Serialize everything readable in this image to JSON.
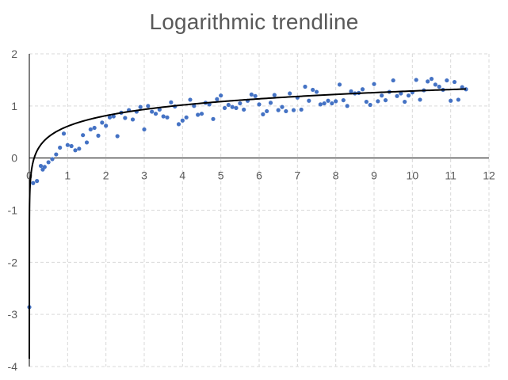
{
  "chart_data": {
    "type": "scatter",
    "title": "Logarithmic trendline",
    "xlabel": "",
    "ylabel": "",
    "xlim": [
      0,
      12
    ],
    "ylim": [
      -4,
      2
    ],
    "x_ticks": [
      "0",
      "1",
      "2",
      "3",
      "4",
      "5",
      "6",
      "7",
      "8",
      "9",
      "10",
      "11",
      "12"
    ],
    "y_ticks": [
      "2",
      "1",
      "0",
      "-1",
      "-2",
      "-3",
      "-4"
    ],
    "grid": "dashed",
    "legend": "none",
    "marker_color": "#4472C4",
    "trendline": {
      "type": "logarithmic",
      "a": 0.294,
      "b": 0.61,
      "color": "#000000"
    },
    "series": [
      {
        "points": [
          [
            0.0,
            -2.86
          ],
          [
            0.1,
            -0.48
          ],
          [
            0.2,
            -0.44
          ],
          [
            0.3,
            -0.15
          ],
          [
            0.35,
            -0.22
          ],
          [
            0.4,
            -0.17
          ],
          [
            0.5,
            -0.08
          ],
          [
            0.6,
            -0.02
          ],
          [
            0.7,
            0.07
          ],
          [
            0.8,
            0.2
          ],
          [
            0.9,
            0.47
          ],
          [
            1.0,
            0.25
          ],
          [
            1.1,
            0.23
          ],
          [
            1.2,
            0.15
          ],
          [
            1.3,
            0.18
          ],
          [
            1.4,
            0.44
          ],
          [
            1.5,
            0.3
          ],
          [
            1.6,
            0.55
          ],
          [
            1.7,
            0.58
          ],
          [
            1.8,
            0.43
          ],
          [
            1.9,
            0.68
          ],
          [
            2.0,
            0.62
          ],
          [
            2.1,
            0.78
          ],
          [
            2.2,
            0.8
          ],
          [
            2.3,
            0.42
          ],
          [
            2.4,
            0.87
          ],
          [
            2.5,
            0.77
          ],
          [
            2.6,
            0.92
          ],
          [
            2.7,
            0.74
          ],
          [
            2.8,
            0.89
          ],
          [
            2.9,
            0.98
          ],
          [
            3.0,
            0.55
          ],
          [
            3.1,
            1.0
          ],
          [
            3.2,
            0.89
          ],
          [
            3.3,
            0.85
          ],
          [
            3.4,
            0.93
          ],
          [
            3.5,
            0.8
          ],
          [
            3.6,
            0.78
          ],
          [
            3.7,
            1.07
          ],
          [
            3.8,
            0.99
          ],
          [
            3.9,
            0.65
          ],
          [
            4.0,
            0.72
          ],
          [
            4.1,
            0.78
          ],
          [
            4.2,
            1.12
          ],
          [
            4.3,
            1.0
          ],
          [
            4.4,
            0.83
          ],
          [
            4.5,
            0.85
          ],
          [
            4.6,
            1.06
          ],
          [
            4.7,
            1.03
          ],
          [
            4.8,
            0.75
          ],
          [
            4.9,
            1.13
          ],
          [
            5.0,
            1.2
          ],
          [
            5.1,
            0.96
          ],
          [
            5.2,
            1.02
          ],
          [
            5.3,
            0.98
          ],
          [
            5.4,
            0.96
          ],
          [
            5.5,
            1.05
          ],
          [
            5.6,
            0.93
          ],
          [
            5.7,
            1.1
          ],
          [
            5.8,
            1.22
          ],
          [
            5.9,
            1.19
          ],
          [
            6.0,
            1.03
          ],
          [
            6.1,
            0.84
          ],
          [
            6.2,
            0.9
          ],
          [
            6.3,
            1.06
          ],
          [
            6.4,
            1.21
          ],
          [
            6.5,
            0.92
          ],
          [
            6.6,
            0.98
          ],
          [
            6.7,
            0.9
          ],
          [
            6.8,
            1.24
          ],
          [
            6.9,
            0.92
          ],
          [
            7.0,
            1.16
          ],
          [
            7.1,
            0.93
          ],
          [
            7.2,
            1.37
          ],
          [
            7.3,
            1.1
          ],
          [
            7.4,
            1.31
          ],
          [
            7.5,
            1.27
          ],
          [
            7.6,
            1.03
          ],
          [
            7.7,
            1.05
          ],
          [
            7.8,
            1.1
          ],
          [
            7.9,
            1.05
          ],
          [
            8.0,
            1.09
          ],
          [
            8.1,
            1.41
          ],
          [
            8.2,
            1.11
          ],
          [
            8.3,
            1.0
          ],
          [
            8.4,
            1.28
          ],
          [
            8.5,
            1.24
          ],
          [
            8.6,
            1.25
          ],
          [
            8.7,
            1.32
          ],
          [
            8.8,
            1.08
          ],
          [
            8.9,
            1.02
          ],
          [
            9.0,
            1.42
          ],
          [
            9.1,
            1.09
          ],
          [
            9.2,
            1.2
          ],
          [
            9.3,
            1.11
          ],
          [
            9.4,
            1.27
          ],
          [
            9.5,
            1.49
          ],
          [
            9.6,
            1.19
          ],
          [
            9.7,
            1.24
          ],
          [
            9.8,
            1.08
          ],
          [
            9.9,
            1.2
          ],
          [
            10.0,
            1.26
          ],
          [
            10.1,
            1.5
          ],
          [
            10.2,
            1.12
          ],
          [
            10.3,
            1.3
          ],
          [
            10.4,
            1.47
          ],
          [
            10.5,
            1.52
          ],
          [
            10.6,
            1.41
          ],
          [
            10.7,
            1.37
          ],
          [
            10.8,
            1.31
          ],
          [
            10.9,
            1.49
          ],
          [
            11.0,
            1.1
          ],
          [
            11.1,
            1.46
          ],
          [
            11.2,
            1.12
          ],
          [
            11.3,
            1.36
          ],
          [
            11.4,
            1.32
          ]
        ]
      }
    ]
  }
}
